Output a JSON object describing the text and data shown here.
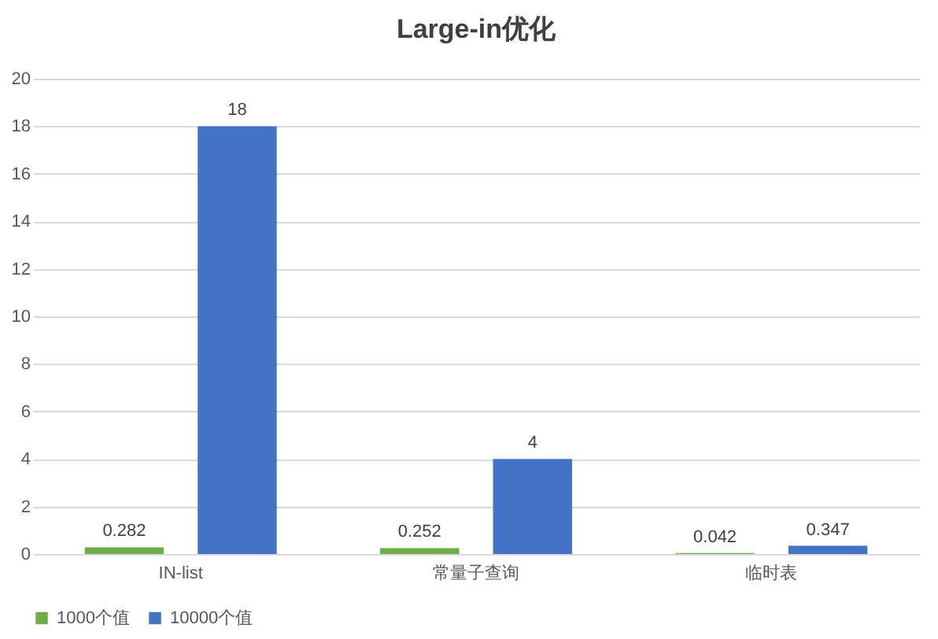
{
  "chart_data": {
    "type": "bar",
    "title": "Large-in优化",
    "categories": [
      "IN-list",
      "常量子查询",
      "临时表"
    ],
    "series": [
      {
        "name": "1000个值",
        "color": "#70ad47",
        "values": [
          0.282,
          0.252,
          0.042
        ]
      },
      {
        "name": "10000个值",
        "color": "#4472c4",
        "values": [
          18,
          4,
          0.347
        ]
      }
    ],
    "ylim": [
      0,
      20
    ],
    "yticks": [
      0,
      2,
      4,
      6,
      8,
      10,
      12,
      14,
      16,
      18,
      20
    ],
    "grid": "y",
    "legend": "bottom",
    "data_labels": true
  }
}
